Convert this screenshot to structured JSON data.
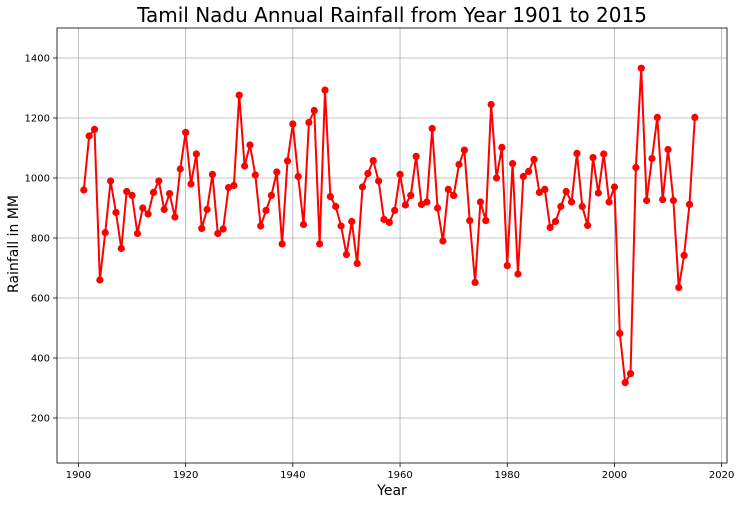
{
  "chart_data": {
    "type": "line",
    "title": "Tamil Nadu Annual Rainfall from Year 1901 to 2015",
    "xlabel": "Year",
    "ylabel": "Rainfall in MM",
    "xlim": [
      1896,
      2021
    ],
    "ylim": [
      50,
      1500
    ],
    "xticks": [
      1900,
      1920,
      1940,
      1960,
      1980,
      2000,
      2020
    ],
    "yticks": [
      200,
      400,
      600,
      800,
      1000,
      1200,
      1400
    ],
    "grid": true,
    "color": "#ff0000",
    "series": [
      {
        "x": [
          1901,
          1902,
          1903,
          1904,
          1905,
          1906,
          1907,
          1908,
          1909,
          1910,
          1911,
          1912,
          1913,
          1914,
          1915,
          1916,
          1917,
          1918,
          1919,
          1920,
          1921,
          1922,
          1923,
          1924,
          1925,
          1926,
          1927,
          1928,
          1929,
          1930,
          1931,
          1932,
          1933,
          1934,
          1935,
          1936,
          1937,
          1938,
          1939,
          1940,
          1941,
          1942,
          1943,
          1944,
          1945,
          1946,
          1947,
          1948,
          1949,
          1950,
          1951,
          1952,
          1953,
          1954,
          1955,
          1956,
          1957,
          1958,
          1959,
          1960,
          1961,
          1962,
          1963,
          1964,
          1965,
          1966,
          1967,
          1968,
          1969,
          1970,
          1971,
          1972,
          1973,
          1974,
          1975,
          1976,
          1977,
          1978,
          1979,
          1980,
          1981,
          1982,
          1983,
          1984,
          1985,
          1986,
          1987,
          1988,
          1989,
          1990,
          1991,
          1992,
          1993,
          1994,
          1995,
          1996,
          1997,
          1998,
          1999,
          2000,
          2001,
          2002,
          2003,
          2004,
          2005,
          2006,
          2007,
          2008,
          2009,
          2010,
          2011,
          2012,
          2013,
          2014,
          2015
        ],
        "values": [
          960,
          1140,
          1162,
          660,
          818,
          990,
          885,
          765,
          955,
          942,
          815,
          900,
          880,
          952,
          990,
          895,
          948,
          870,
          1030,
          1152,
          980,
          1080,
          832,
          895,
          1012,
          815,
          830,
          968,
          975,
          1276,
          1040,
          1110,
          1010,
          840,
          892,
          942,
          1020,
          780,
          1057,
          1180,
          1005,
          845,
          1185,
          1225,
          780,
          1293,
          938,
          905,
          840,
          745,
          855,
          715,
          970,
          1015,
          1058,
          990,
          862,
          852,
          892,
          1012,
          910,
          942,
          1072,
          912,
          920,
          1165,
          900,
          790,
          962,
          942,
          1045,
          1093,
          858,
          652,
          920,
          858,
          1245,
          1000,
          1102,
          708,
          1048,
          680,
          1005,
          1022,
          1062,
          952,
          962,
          835,
          855,
          905,
          955,
          920,
          1082,
          905,
          842,
          1068,
          950,
          1080,
          920,
          970,
          482,
          318,
          348,
          1035,
          1366,
          925,
          1065,
          1202,
          928,
          1095,
          925,
          635,
          742,
          912,
          1202
        ]
      }
    ]
  }
}
